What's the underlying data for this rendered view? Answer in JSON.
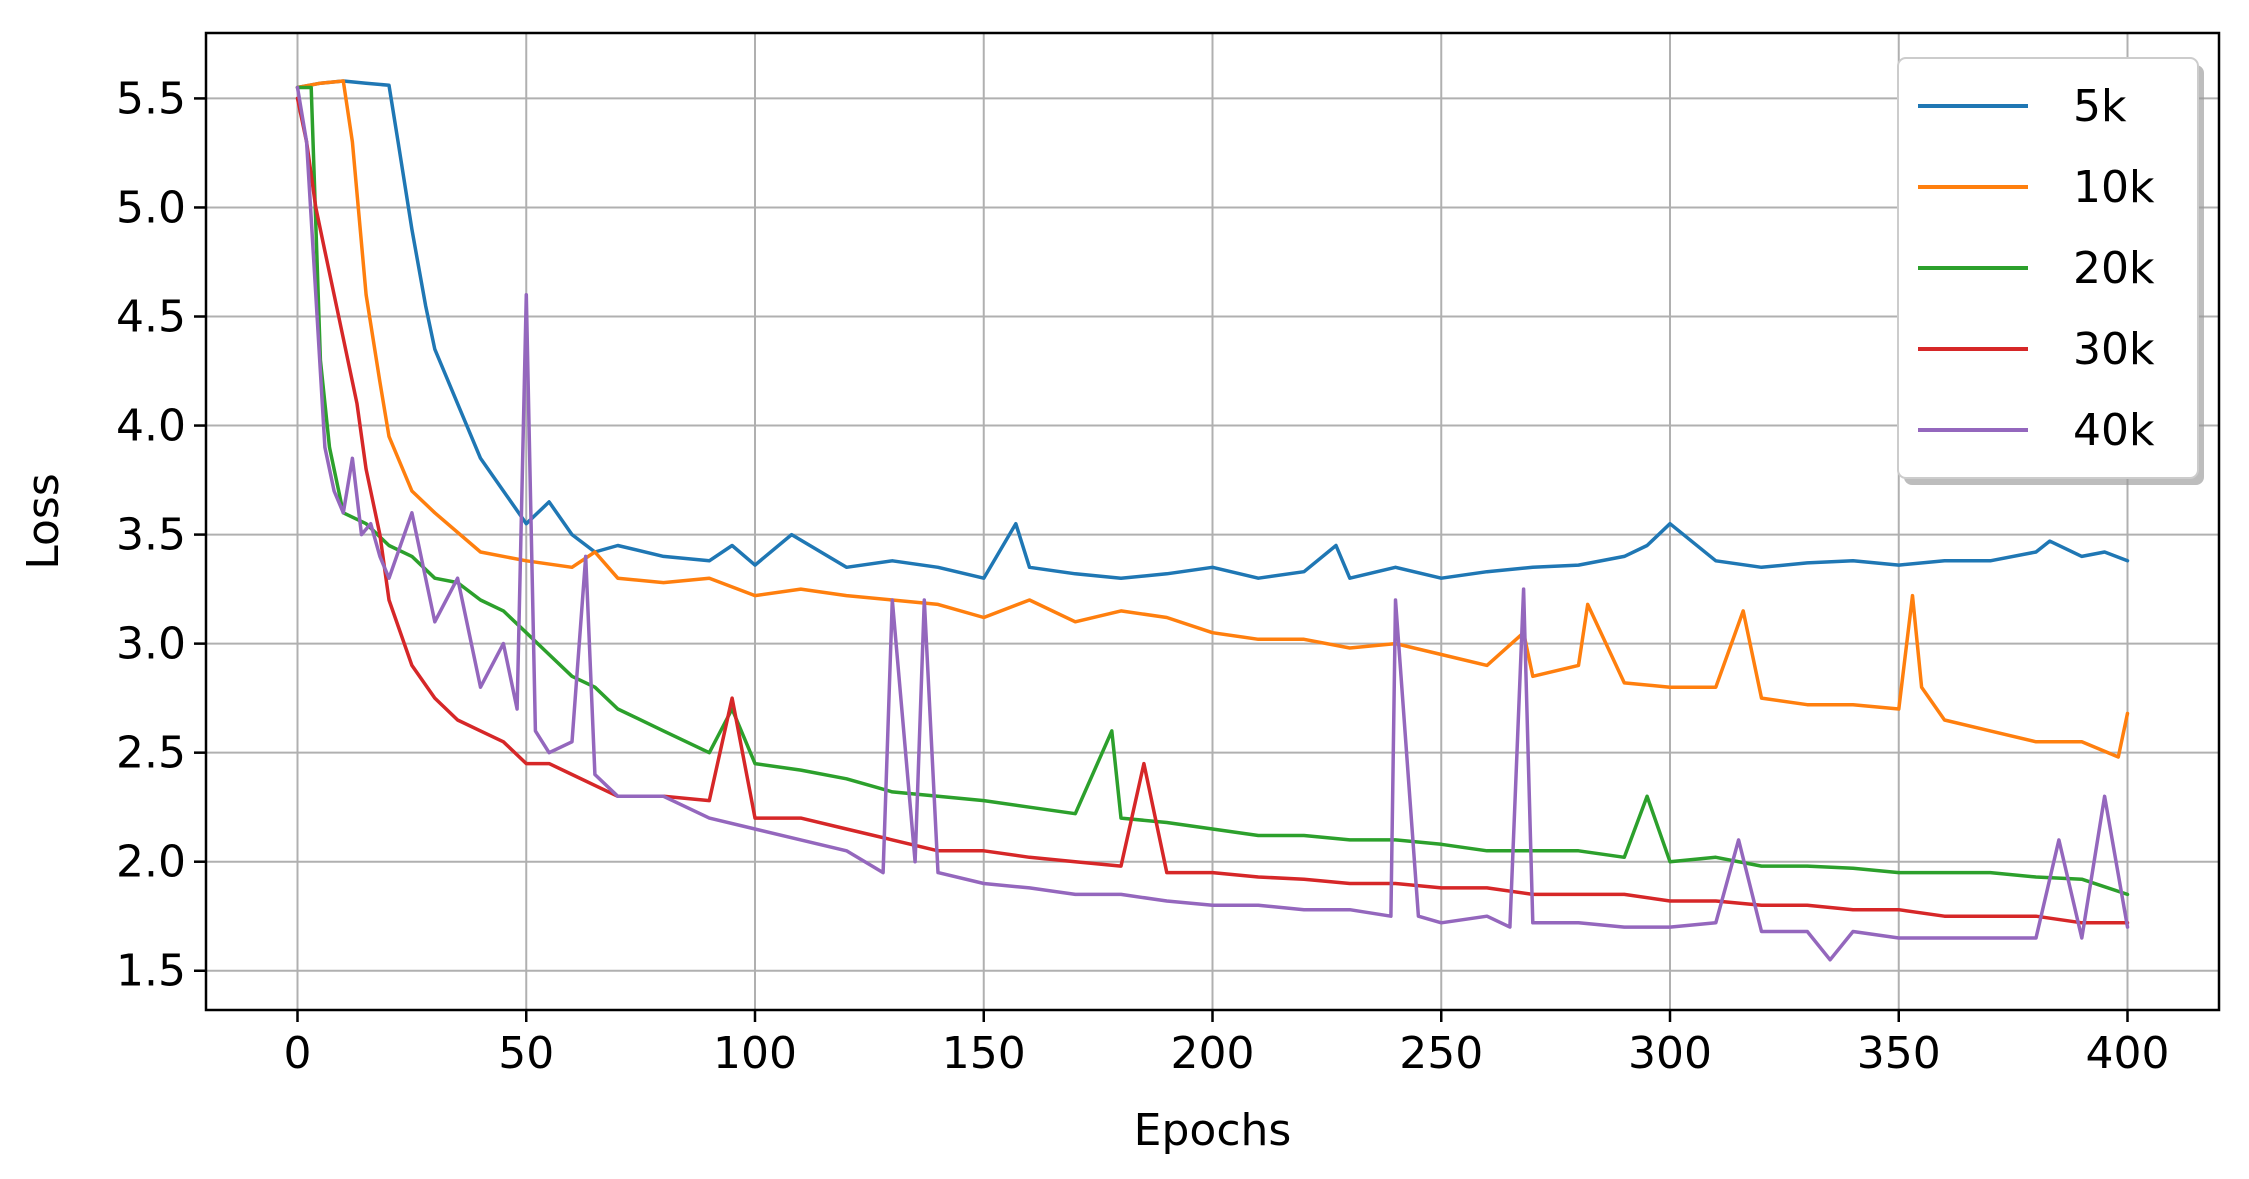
{
  "chart_data": {
    "type": "line",
    "xlabel": "Epochs",
    "ylabel": "Loss",
    "xlim": [
      -20,
      420
    ],
    "ylim": [
      1.32,
      5.8
    ],
    "grid": true,
    "legend_position": "top-right",
    "x_ticks": [
      0,
      50,
      100,
      150,
      200,
      250,
      300,
      350,
      400
    ],
    "x_tick_labels": [
      "0",
      "50",
      "100",
      "150",
      "200",
      "250",
      "300",
      "350",
      "400"
    ],
    "y_ticks": [
      1.5,
      2.0,
      2.5,
      3.0,
      3.5,
      4.0,
      4.5,
      5.0,
      5.5
    ],
    "y_tick_labels": [
      "1.5",
      "2.0",
      "2.5",
      "3.0",
      "3.5",
      "4.0",
      "4.5",
      "5.0",
      "5.5"
    ],
    "series": [
      {
        "name": "5k",
        "color": "#1f77b4",
        "x": [
          0,
          5,
          10,
          15,
          20,
          22,
          25,
          28,
          30,
          33,
          35,
          40,
          45,
          50,
          55,
          60,
          65,
          70,
          80,
          90,
          95,
          100,
          108,
          120,
          130,
          140,
          150,
          157,
          160,
          170,
          180,
          190,
          200,
          210,
          220,
          227,
          230,
          240,
          250,
          260,
          270,
          280,
          290,
          295,
          300,
          310,
          320,
          330,
          340,
          350,
          360,
          370,
          380,
          383,
          390,
          395,
          400
        ],
        "y": [
          5.55,
          5.57,
          5.58,
          5.57,
          5.56,
          5.3,
          4.9,
          4.55,
          4.35,
          4.2,
          4.1,
          3.85,
          3.7,
          3.55,
          3.65,
          3.5,
          3.42,
          3.45,
          3.4,
          3.38,
          3.45,
          3.36,
          3.5,
          3.35,
          3.38,
          3.35,
          3.3,
          3.55,
          3.35,
          3.32,
          3.3,
          3.32,
          3.35,
          3.3,
          3.33,
          3.45,
          3.3,
          3.35,
          3.3,
          3.33,
          3.35,
          3.36,
          3.4,
          3.45,
          3.55,
          3.38,
          3.35,
          3.37,
          3.38,
          3.36,
          3.38,
          3.38,
          3.42,
          3.47,
          3.4,
          3.42,
          3.38
        ]
      },
      {
        "name": "10k",
        "color": "#ff7f0e",
        "x": [
          0,
          5,
          10,
          12,
          15,
          18,
          20,
          25,
          30,
          40,
          50,
          60,
          65,
          70,
          80,
          90,
          100,
          110,
          120,
          130,
          140,
          150,
          160,
          170,
          180,
          190,
          200,
          210,
          220,
          230,
          240,
          250,
          260,
          268,
          270,
          280,
          282,
          290,
          300,
          310,
          316,
          320,
          330,
          340,
          350,
          353,
          355,
          360,
          370,
          380,
          390,
          398,
          400
        ],
        "y": [
          5.55,
          5.57,
          5.58,
          5.3,
          4.6,
          4.2,
          3.95,
          3.7,
          3.6,
          3.42,
          3.38,
          3.35,
          3.42,
          3.3,
          3.28,
          3.3,
          3.22,
          3.25,
          3.22,
          3.2,
          3.18,
          3.12,
          3.2,
          3.1,
          3.15,
          3.12,
          3.05,
          3.02,
          3.02,
          2.98,
          3.0,
          2.95,
          2.9,
          3.05,
          2.85,
          2.9,
          3.18,
          2.82,
          2.8,
          2.8,
          3.15,
          2.75,
          2.72,
          2.72,
          2.7,
          3.22,
          2.8,
          2.65,
          2.6,
          2.55,
          2.55,
          2.48,
          2.68
        ]
      },
      {
        "name": "20k",
        "color": "#2ca02c",
        "x": [
          0,
          3,
          5,
          7,
          10,
          15,
          20,
          25,
          30,
          35,
          40,
          45,
          50,
          55,
          60,
          65,
          70,
          80,
          90,
          95,
          100,
          110,
          120,
          130,
          140,
          150,
          160,
          170,
          178,
          180,
          190,
          200,
          210,
          220,
          230,
          240,
          250,
          260,
          270,
          280,
          290,
          295,
          300,
          310,
          320,
          330,
          340,
          350,
          360,
          370,
          380,
          390,
          400
        ],
        "y": [
          5.55,
          5.55,
          4.3,
          3.9,
          3.6,
          3.55,
          3.45,
          3.4,
          3.3,
          3.28,
          3.2,
          3.15,
          3.05,
          2.95,
          2.85,
          2.8,
          2.7,
          2.6,
          2.5,
          2.7,
          2.45,
          2.42,
          2.38,
          2.32,
          2.3,
          2.28,
          2.25,
          2.22,
          2.6,
          2.2,
          2.18,
          2.15,
          2.12,
          2.12,
          2.1,
          2.1,
          2.08,
          2.05,
          2.05,
          2.05,
          2.02,
          2.3,
          2.0,
          2.02,
          1.98,
          1.98,
          1.97,
          1.95,
          1.95,
          1.95,
          1.93,
          1.92,
          1.85
        ]
      },
      {
        "name": "30k",
        "color": "#d62728",
        "x": [
          0,
          2,
          4,
          6,
          8,
          10,
          13,
          15,
          18,
          20,
          25,
          30,
          35,
          40,
          45,
          50,
          55,
          60,
          65,
          70,
          80,
          90,
          95,
          100,
          110,
          120,
          130,
          140,
          150,
          160,
          170,
          180,
          185,
          190,
          200,
          210,
          220,
          230,
          240,
          250,
          260,
          270,
          280,
          290,
          300,
          310,
          320,
          330,
          340,
          350,
          360,
          370,
          380,
          390,
          400
        ],
        "y": [
          5.5,
          5.3,
          5.0,
          4.8,
          4.6,
          4.4,
          4.1,
          3.8,
          3.5,
          3.2,
          2.9,
          2.75,
          2.65,
          2.6,
          2.55,
          2.45,
          2.45,
          2.4,
          2.35,
          2.3,
          2.3,
          2.28,
          2.75,
          2.2,
          2.2,
          2.15,
          2.1,
          2.05,
          2.05,
          2.02,
          2.0,
          1.98,
          2.45,
          1.95,
          1.95,
          1.93,
          1.92,
          1.9,
          1.9,
          1.88,
          1.88,
          1.85,
          1.85,
          1.85,
          1.82,
          1.82,
          1.8,
          1.8,
          1.78,
          1.78,
          1.75,
          1.75,
          1.75,
          1.72,
          1.72
        ]
      },
      {
        "name": "40k",
        "color": "#9467bd",
        "x": [
          0,
          2,
          4,
          6,
          8,
          10,
          12,
          14,
          16,
          18,
          20,
          25,
          30,
          35,
          40,
          45,
          48,
          50,
          52,
          55,
          60,
          63,
          65,
          70,
          80,
          90,
          100,
          110,
          120,
          128,
          130,
          135,
          137,
          140,
          150,
          160,
          170,
          180,
          190,
          200,
          210,
          220,
          230,
          239,
          240,
          245,
          250,
          260,
          265,
          268,
          270,
          280,
          290,
          300,
          310,
          315,
          320,
          330,
          335,
          340,
          350,
          360,
          370,
          380,
          385,
          390,
          395,
          400
        ],
        "y": [
          5.55,
          5.3,
          4.6,
          3.9,
          3.7,
          3.6,
          3.85,
          3.5,
          3.55,
          3.4,
          3.3,
          3.6,
          3.1,
          3.3,
          2.8,
          3.0,
          2.7,
          4.6,
          2.6,
          2.5,
          2.55,
          3.4,
          2.4,
          2.3,
          2.3,
          2.2,
          2.15,
          2.1,
          2.05,
          1.95,
          3.2,
          2.0,
          3.2,
          1.95,
          1.9,
          1.88,
          1.85,
          1.85,
          1.82,
          1.8,
          1.8,
          1.78,
          1.78,
          1.75,
          3.2,
          1.75,
          1.72,
          1.75,
          1.7,
          3.25,
          1.72,
          1.72,
          1.7,
          1.7,
          1.72,
          2.1,
          1.68,
          1.68,
          1.55,
          1.68,
          1.65,
          1.65,
          1.65,
          1.65,
          2.1,
          1.65,
          2.3,
          1.7
        ]
      }
    ]
  }
}
